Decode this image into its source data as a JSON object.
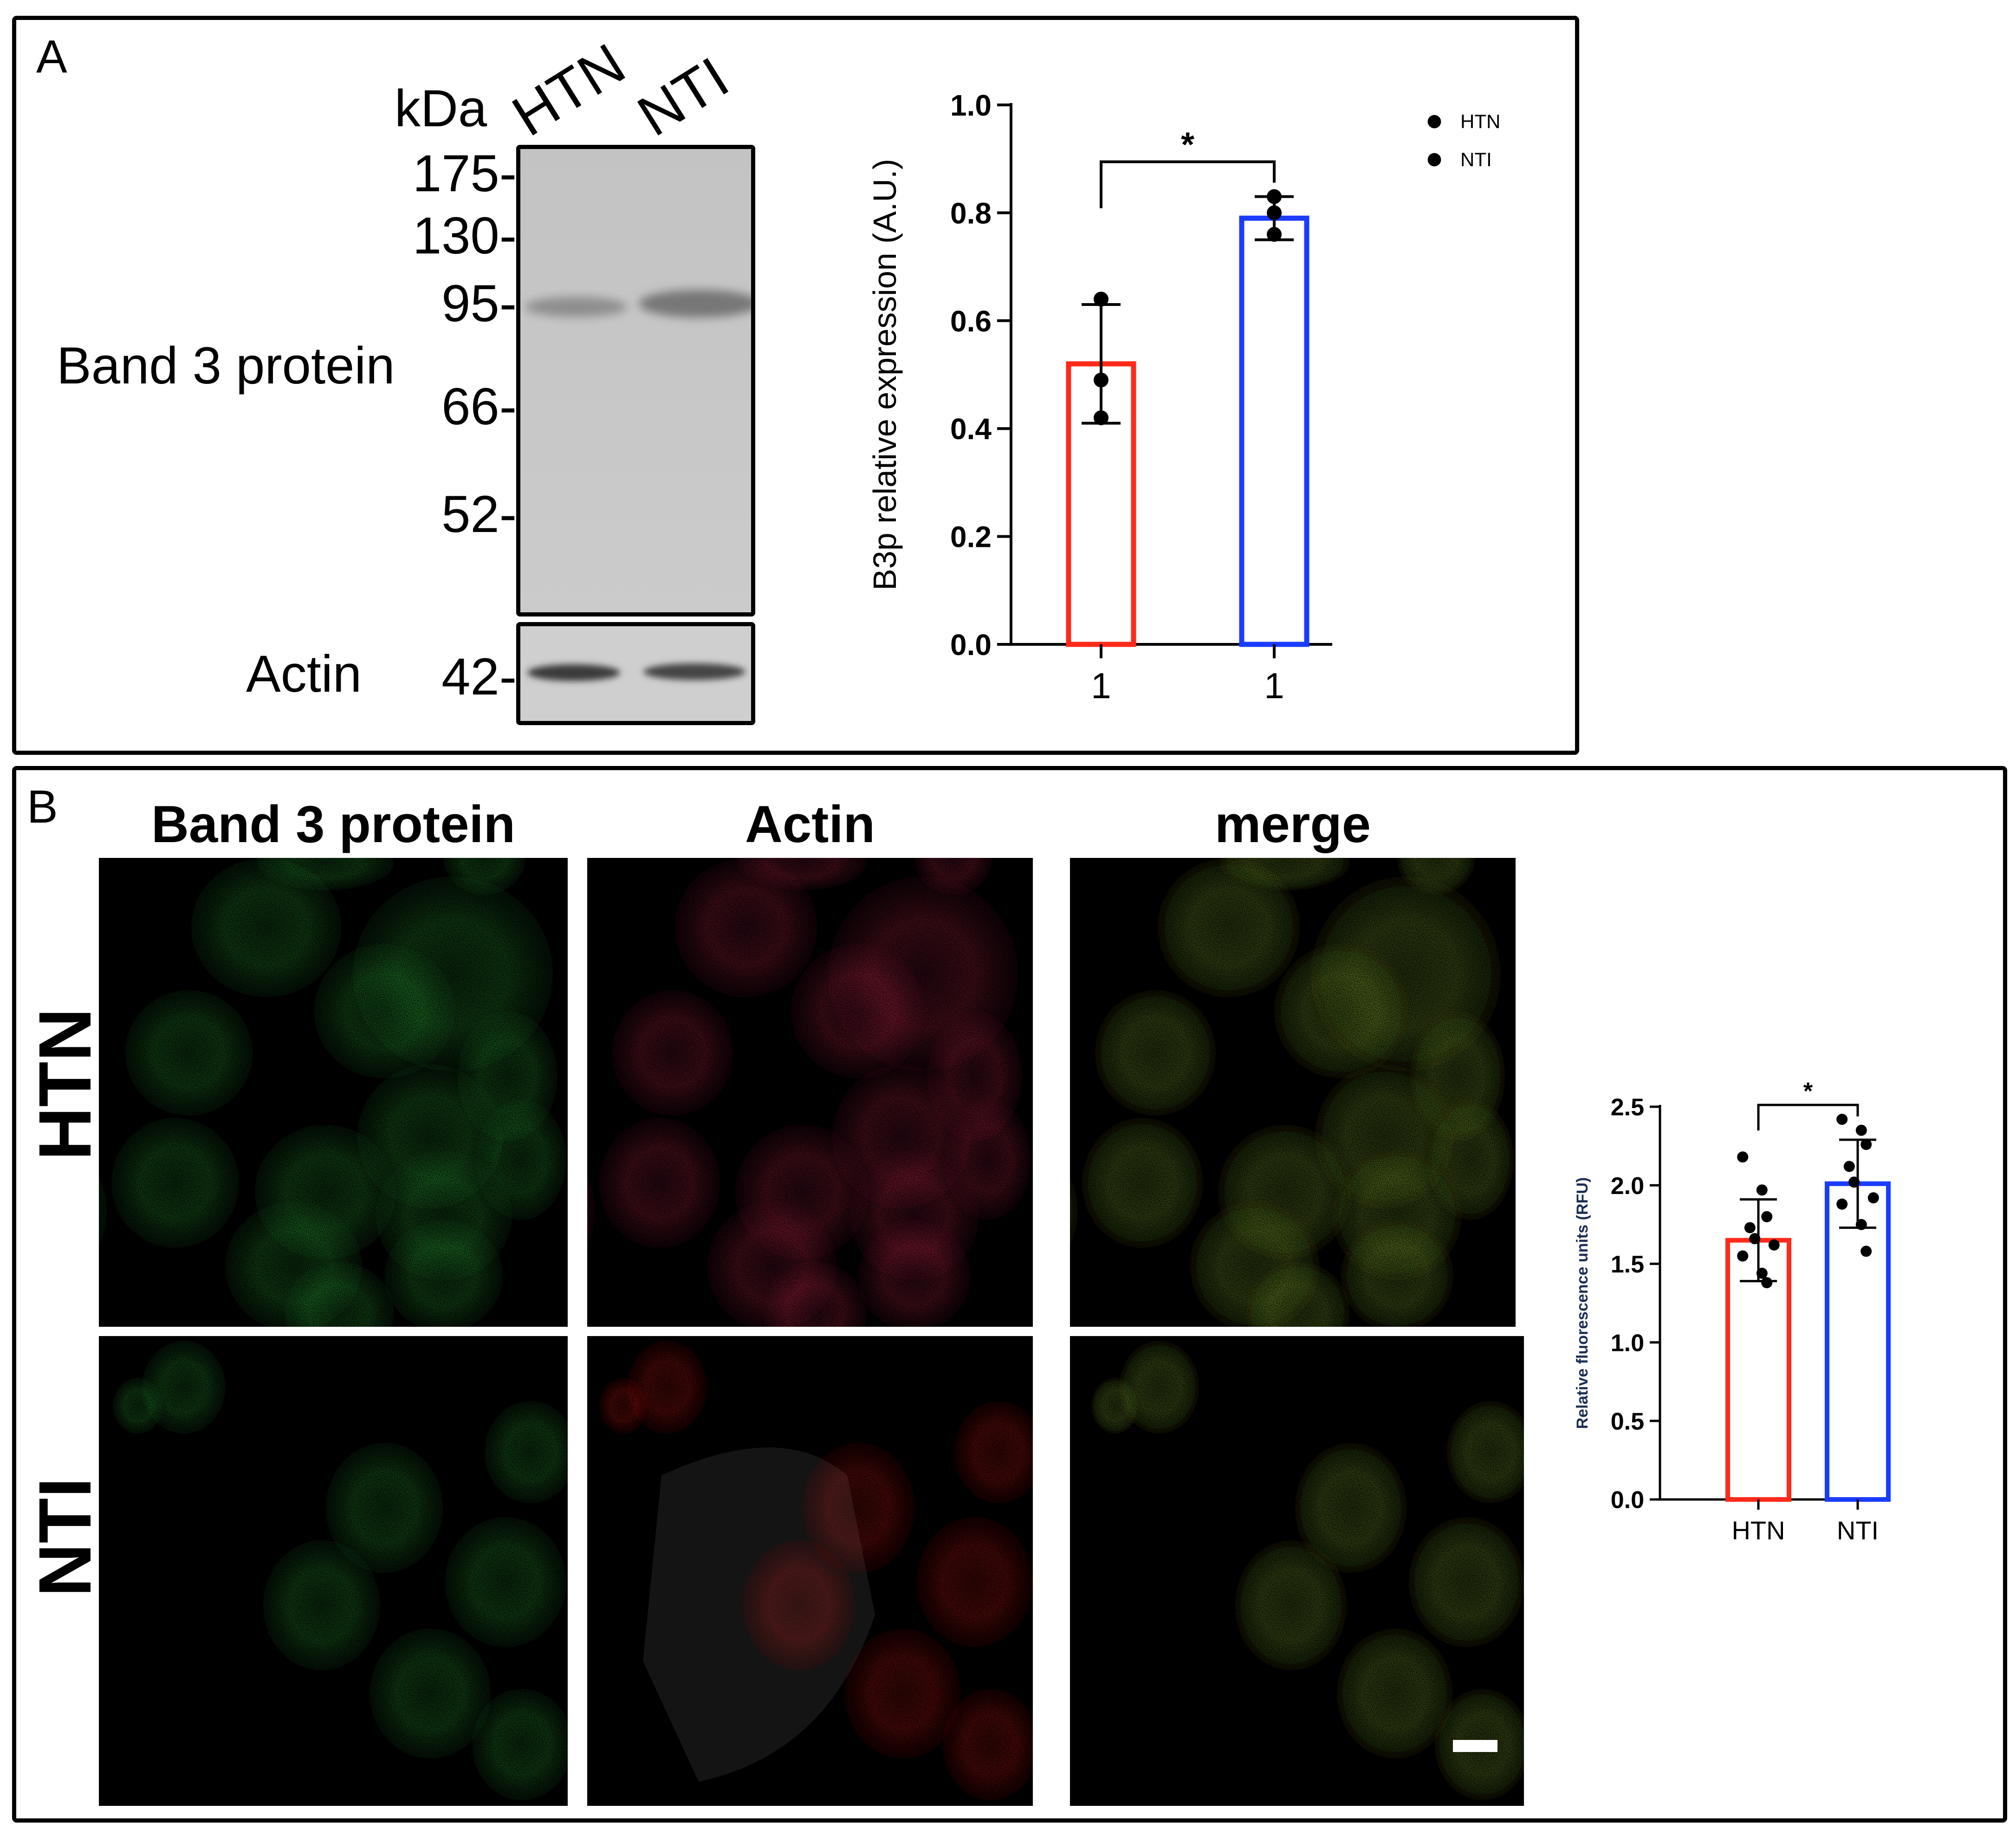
{
  "panel_a": {
    "letter": "A",
    "blot": {
      "unit_label": "kDa",
      "lanes": [
        "HTN",
        "NTI"
      ],
      "markers": [
        "175-",
        "130-",
        "95-",
        "66-",
        "52-"
      ],
      "actin_marker": "42-",
      "row_labels": {
        "band3": "Band 3 protein",
        "actin": "Actin"
      }
    }
  },
  "panel_b": {
    "letter": "B",
    "columns": [
      "Band 3 protein",
      "Actin",
      "merge"
    ],
    "rows": [
      "HTN",
      "NTI"
    ]
  },
  "colors": {
    "htn": "#ff2a1a",
    "nti": "#1a3cff",
    "green_signal": "#2fb63a",
    "red_signal": "#e0203a"
  },
  "chart_data": [
    {
      "type": "bar",
      "categories": [
        "1",
        "1"
      ],
      "series": [
        {
          "name": "HTN",
          "mean": 0.52,
          "sd": 0.11,
          "points": [
            0.64,
            0.49,
            0.42
          ]
        },
        {
          "name": "NTI",
          "mean": 0.79,
          "sd": 0.04,
          "points": [
            0.83,
            0.8,
            0.76
          ]
        }
      ],
      "values": [
        0.52,
        0.79
      ],
      "ylabel": "B3p relative expression (A.U.)",
      "xlabel": "",
      "ylim": [
        0.0,
        1.0
      ],
      "yticks": [
        "0.0",
        "0.2",
        "0.4",
        "0.6",
        "0.8",
        "1.0"
      ],
      "significance": "*",
      "legend": {
        "placement": "top-right",
        "entries": [
          "HTN",
          "NTI"
        ]
      },
      "grid": false
    },
    {
      "type": "bar",
      "categories": [
        "HTN",
        "NTI"
      ],
      "series": [
        {
          "name": "HTN",
          "mean": 1.65,
          "sd": 0.26,
          "points": [
            2.18,
            1.97,
            1.8,
            1.73,
            1.66,
            1.62,
            1.55,
            1.44,
            1.38
          ]
        },
        {
          "name": "NTI",
          "mean": 2.01,
          "sd": 0.28,
          "points": [
            2.42,
            2.35,
            2.26,
            2.12,
            2.02,
            1.92,
            1.88,
            1.75,
            1.58
          ]
        }
      ],
      "values": [
        1.65,
        2.01
      ],
      "ylabel": "Relative fluorescence units (RFU)",
      "xlabel": "",
      "ylim": [
        0.0,
        2.5
      ],
      "yticks": [
        "0.0",
        "0.5",
        "1.0",
        "1.5",
        "2.0",
        "2.5"
      ],
      "significance": "*",
      "grid": false
    }
  ]
}
